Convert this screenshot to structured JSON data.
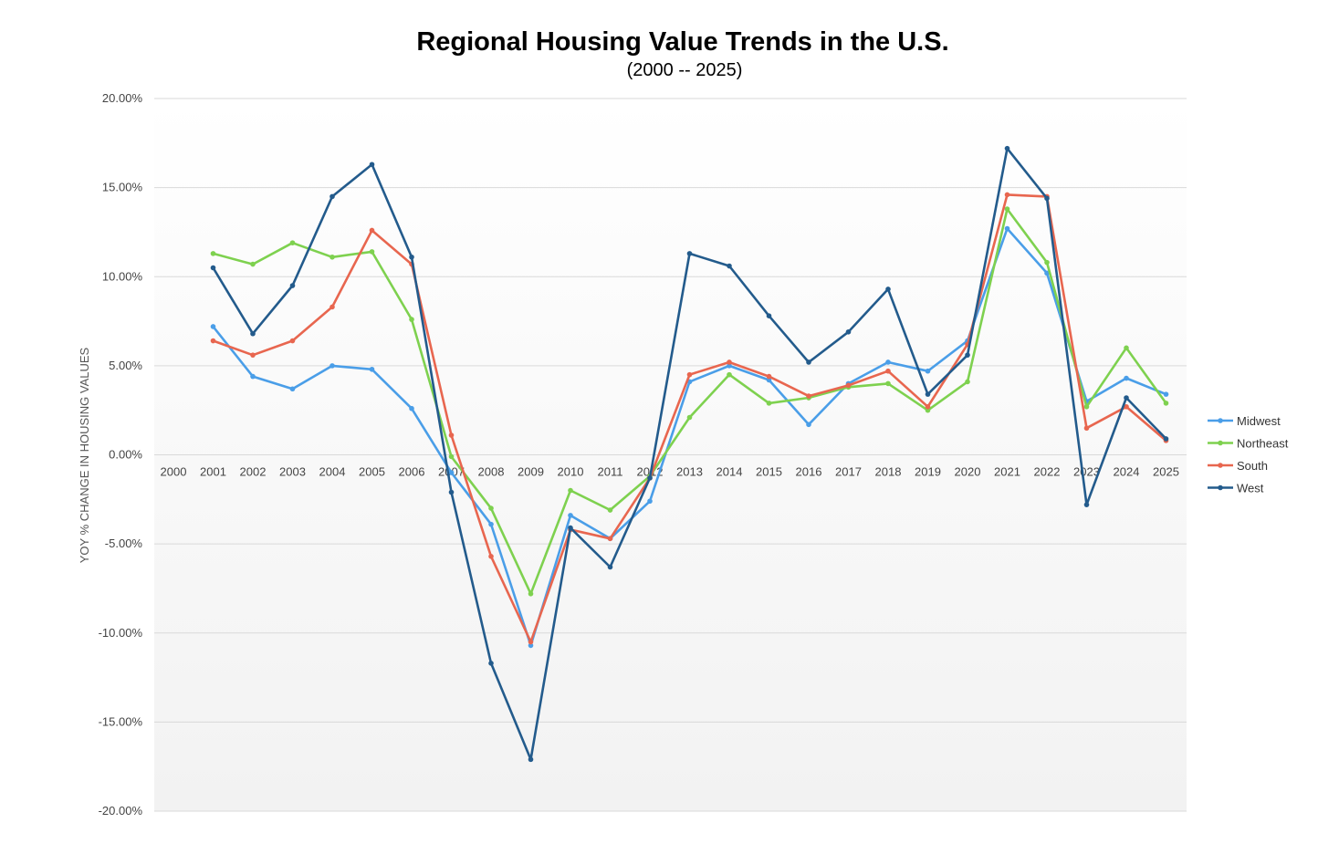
{
  "chart_data": {
    "type": "line",
    "title": "Regional Housing Value Trends in the U.S.",
    "subtitle": "(2000 -- 2025)",
    "xlabel": "",
    "ylabel": "YOY % CHANGE IN HOUSING VALUES",
    "ylim": [
      -20,
      20
    ],
    "yticks": [
      20,
      15,
      10,
      5,
      0,
      -5,
      -10,
      -15,
      -20
    ],
    "ytick_labels": [
      "20.00%",
      "15.00%",
      "10.00%",
      "5.00%",
      "0.00%",
      "-5.00%",
      "-10.00%",
      "-15.00%",
      "-20.00%"
    ],
    "grid": true,
    "legend_position": "right",
    "categories": [
      "2000",
      "2001",
      "2002",
      "2003",
      "2004",
      "2005",
      "2006",
      "2007",
      "2008",
      "2009",
      "2010",
      "2011",
      "2012",
      "2013",
      "2014",
      "2015",
      "2016",
      "2017",
      "2018",
      "2019",
      "2020",
      "2021",
      "2022",
      "2023",
      "2024",
      "2025"
    ],
    "series": [
      {
        "name": "Midwest",
        "color": "#4a9ee8",
        "values": [
          null,
          7.2,
          4.4,
          3.7,
          5.0,
          4.8,
          2.6,
          -1.0,
          -3.9,
          -10.7,
          -3.4,
          -4.7,
          -2.6,
          4.1,
          5.0,
          4.2,
          1.7,
          4.0,
          5.2,
          4.7,
          6.4,
          12.7,
          10.2,
          3.0,
          4.3,
          3.4
        ]
      },
      {
        "name": "Northeast",
        "color": "#7ed14f",
        "values": [
          null,
          11.3,
          10.7,
          11.9,
          11.1,
          11.4,
          7.6,
          -0.1,
          -3.0,
          -7.8,
          -2.0,
          -3.1,
          -1.2,
          2.1,
          4.5,
          2.9,
          3.2,
          3.8,
          4.0,
          2.5,
          4.1,
          13.8,
          10.8,
          2.7,
          6.0,
          2.9
        ]
      },
      {
        "name": "South",
        "color": "#e8664f",
        "values": [
          null,
          6.4,
          5.6,
          6.4,
          8.3,
          12.6,
          10.7,
          1.1,
          -5.7,
          -10.5,
          -4.2,
          -4.7,
          -1.3,
          4.5,
          5.2,
          4.4,
          3.3,
          3.9,
          4.7,
          2.7,
          6.2,
          14.6,
          14.5,
          1.5,
          2.7,
          0.8
        ]
      },
      {
        "name": "West",
        "color": "#235b8c",
        "values": [
          null,
          10.5,
          6.8,
          9.5,
          14.5,
          16.3,
          11.1,
          -2.1,
          -11.7,
          -17.1,
          -4.1,
          -6.3,
          -1.3,
          11.3,
          10.6,
          7.8,
          5.2,
          6.9,
          9.3,
          3.4,
          5.6,
          17.2,
          14.4,
          -2.8,
          3.2,
          0.9
        ]
      }
    ]
  }
}
